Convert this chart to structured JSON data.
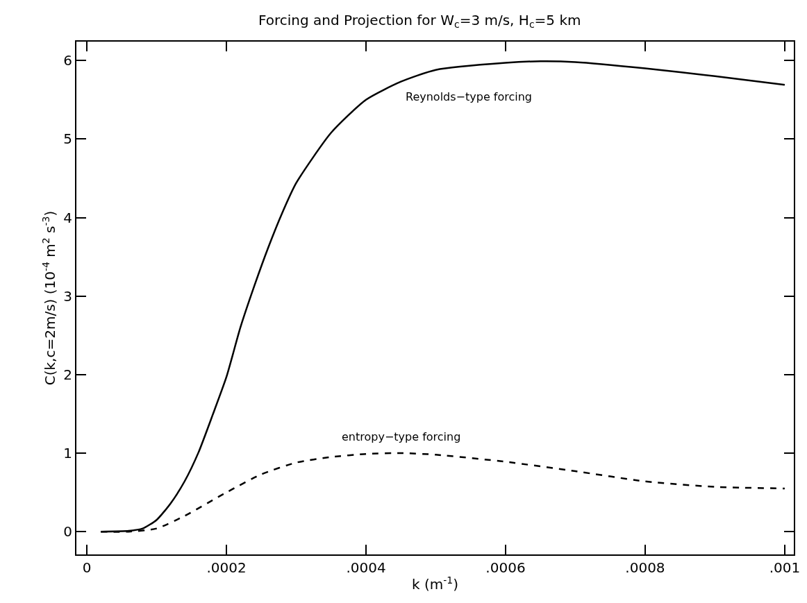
{
  "chart_data": {
    "type": "line",
    "title": "Forcing and Projection for W$_{c}$=3 m/s, H$_{c}$=5 km",
    "xlabel": "k (m$^{-1}$)",
    "ylabel": "C(k,c=2m/s) (10$^{-4}$ m$^{2}$ s$^{-3}$)",
    "series": [
      {
        "name": "Reynolds−type forcing",
        "color": "#000000",
        "line_style": "solid",
        "x": [
          2e-05,
          6e-05,
          8e-05,
          0.0001,
          0.00012,
          0.00014,
          0.00016,
          0.00018,
          0.0002,
          0.00022,
          0.00024,
          0.00026,
          0.00028,
          0.0003,
          0.00035,
          0.0004,
          0.00045,
          0.0005,
          0.0006,
          0.00065,
          0.0007,
          0.0008,
          0.0009,
          0.001
        ],
        "values": [
          0,
          0.01,
          0.04,
          0.15,
          0.36,
          0.64,
          1.01,
          1.48,
          1.97,
          2.6,
          3.13,
          3.62,
          4.06,
          4.44,
          5.08,
          5.5,
          5.73,
          5.88,
          5.97,
          5.99,
          5.98,
          5.9,
          5.8,
          5.69
        ]
      },
      {
        "name": "entropy−type forcing",
        "color": "#000000",
        "line_style": "dashed",
        "x": [
          2e-05,
          6e-05,
          0.0001,
          0.00014,
          0.0002,
          0.00025,
          0.0003,
          0.00035,
          0.0004,
          0.00045,
          0.0005,
          0.0006,
          0.0007,
          0.0008,
          0.0009,
          0.001
        ],
        "values": [
          0,
          0,
          0.04,
          0.2,
          0.5,
          0.73,
          0.88,
          0.95,
          0.99,
          1.0,
          0.98,
          0.89,
          0.77,
          0.64,
          0.57,
          0.55
        ]
      }
    ],
    "xlim": [
      -1.5e-05,
      0.001013
    ],
    "ylim": [
      -0.29,
      6.24
    ],
    "xticks": [
      0,
      {
        "value": 0.0002,
        "label": ".0002"
      },
      {
        "value": 0.0004,
        "label": ".0004"
      },
      {
        "value": 0.0006,
        "label": ".0006"
      },
      {
        "value": 0.0008,
        "label": ".0008"
      },
      {
        "value": 0.001,
        "label": ".001"
      }
    ],
    "yticks": [
      0,
      1,
      2,
      3,
      4,
      5,
      6
    ],
    "grid": false,
    "legend": false,
    "marker": "none"
  }
}
